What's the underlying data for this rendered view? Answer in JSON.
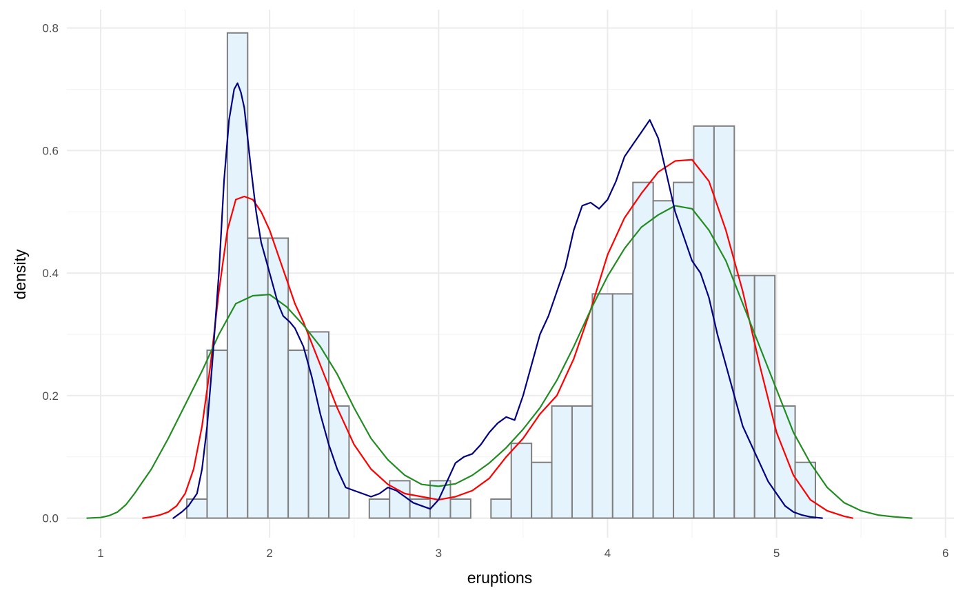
{
  "chart_data": {
    "type": "bar",
    "xlabel": "eruptions",
    "ylabel": "density",
    "xlim": [
      0.8,
      6.05
    ],
    "ylim": [
      -0.032,
      0.83
    ],
    "x_ticks": [
      1,
      2,
      3,
      4,
      5,
      6
    ],
    "x_tick_labels": [
      "1",
      "2",
      "3",
      "4",
      "5",
      "6"
    ],
    "y_ticks": [
      0.0,
      0.2,
      0.4,
      0.6,
      0.8
    ],
    "y_tick_labels": [
      "0.0",
      "0.2",
      "0.4",
      "0.6",
      "0.8"
    ],
    "grid": true,
    "histogram": {
      "bin_width": 0.12,
      "fill_color": "#e5f3fc",
      "stroke_color": "#7f7f7f",
      "bins": [
        {
          "x0": 1.51,
          "x1": 1.63,
          "density": 0.031
        },
        {
          "x0": 1.63,
          "x1": 1.75,
          "density": 0.274
        },
        {
          "x0": 1.75,
          "x1": 1.87,
          "density": 0.792
        },
        {
          "x0": 1.87,
          "x1": 1.99,
          "density": 0.457
        },
        {
          "x0": 1.99,
          "x1": 2.11,
          "density": 0.457
        },
        {
          "x0": 2.11,
          "x1": 2.23,
          "density": 0.274
        },
        {
          "x0": 2.23,
          "x1": 2.35,
          "density": 0.304
        },
        {
          "x0": 2.35,
          "x1": 2.47,
          "density": 0.183
        },
        {
          "x0": 2.47,
          "x1": 2.59,
          "density": 0.0
        },
        {
          "x0": 2.59,
          "x1": 2.71,
          "density": 0.031
        },
        {
          "x0": 2.71,
          "x1": 2.83,
          "density": 0.061
        },
        {
          "x0": 2.83,
          "x1": 2.95,
          "density": 0.031
        },
        {
          "x0": 2.95,
          "x1": 3.07,
          "density": 0.061
        },
        {
          "x0": 3.07,
          "x1": 3.19,
          "density": 0.031
        },
        {
          "x0": 3.19,
          "x1": 3.31,
          "density": 0.0
        },
        {
          "x0": 3.31,
          "x1": 3.43,
          "density": 0.031
        },
        {
          "x0": 3.43,
          "x1": 3.55,
          "density": 0.122
        },
        {
          "x0": 3.55,
          "x1": 3.67,
          "density": 0.091
        },
        {
          "x0": 3.67,
          "x1": 3.79,
          "density": 0.183
        },
        {
          "x0": 3.79,
          "x1": 3.91,
          "density": 0.183
        },
        {
          "x0": 3.91,
          "x1": 4.03,
          "density": 0.366
        },
        {
          "x0": 4.03,
          "x1": 4.15,
          "density": 0.366
        },
        {
          "x0": 4.15,
          "x1": 4.27,
          "density": 0.548
        },
        {
          "x0": 4.27,
          "x1": 4.39,
          "density": 0.518
        },
        {
          "x0": 4.39,
          "x1": 4.51,
          "density": 0.548
        },
        {
          "x0": 4.51,
          "x1": 4.63,
          "density": 0.64
        },
        {
          "x0": 4.63,
          "x1": 4.75,
          "density": 0.64
        },
        {
          "x0": 4.75,
          "x1": 4.87,
          "density": 0.396
        },
        {
          "x0": 4.87,
          "x1": 4.99,
          "density": 0.396
        },
        {
          "x0": 4.99,
          "x1": 5.11,
          "density": 0.183
        },
        {
          "x0": 5.11,
          "x1": 5.23,
          "density": 0.091
        }
      ]
    },
    "series": [
      {
        "color": "#ff0000",
        "x": [
          1.25,
          1.3,
          1.35,
          1.4,
          1.45,
          1.5,
          1.55,
          1.6,
          1.65,
          1.7,
          1.75,
          1.8,
          1.85,
          1.9,
          1.95,
          2.0,
          2.05,
          2.1,
          2.15,
          2.2,
          2.3,
          2.4,
          2.5,
          2.6,
          2.7,
          2.8,
          2.9,
          3.0,
          3.1,
          3.2,
          3.3,
          3.4,
          3.5,
          3.6,
          3.7,
          3.8,
          3.9,
          4.0,
          4.1,
          4.2,
          4.3,
          4.4,
          4.5,
          4.6,
          4.7,
          4.8,
          4.9,
          5.0,
          5.1,
          5.2,
          5.3,
          5.4,
          5.45
        ],
        "y": [
          0.0,
          0.002,
          0.005,
          0.01,
          0.02,
          0.04,
          0.08,
          0.15,
          0.25,
          0.37,
          0.47,
          0.52,
          0.525,
          0.52,
          0.5,
          0.47,
          0.43,
          0.39,
          0.35,
          0.32,
          0.25,
          0.18,
          0.12,
          0.08,
          0.055,
          0.04,
          0.035,
          0.03,
          0.035,
          0.045,
          0.065,
          0.1,
          0.13,
          0.17,
          0.2,
          0.26,
          0.34,
          0.43,
          0.49,
          0.53,
          0.565,
          0.583,
          0.585,
          0.55,
          0.47,
          0.37,
          0.25,
          0.14,
          0.07,
          0.03,
          0.012,
          0.003,
          0.0
        ]
      },
      {
        "color": "#228b22",
        "x": [
          0.92,
          1.0,
          1.05,
          1.1,
          1.15,
          1.2,
          1.3,
          1.4,
          1.5,
          1.6,
          1.7,
          1.8,
          1.9,
          2.0,
          2.1,
          2.2,
          2.3,
          2.4,
          2.5,
          2.6,
          2.7,
          2.8,
          2.9,
          3.0,
          3.1,
          3.2,
          3.3,
          3.4,
          3.5,
          3.6,
          3.7,
          3.8,
          3.9,
          4.0,
          4.1,
          4.2,
          4.3,
          4.4,
          4.5,
          4.6,
          4.7,
          4.8,
          4.9,
          5.0,
          5.1,
          5.2,
          5.3,
          5.4,
          5.5,
          5.6,
          5.7,
          5.8
        ],
        "y": [
          0.0,
          0.001,
          0.004,
          0.01,
          0.022,
          0.04,
          0.08,
          0.13,
          0.185,
          0.24,
          0.3,
          0.35,
          0.363,
          0.365,
          0.345,
          0.315,
          0.28,
          0.235,
          0.18,
          0.13,
          0.095,
          0.07,
          0.055,
          0.052,
          0.056,
          0.07,
          0.09,
          0.115,
          0.145,
          0.18,
          0.225,
          0.28,
          0.34,
          0.395,
          0.44,
          0.475,
          0.495,
          0.51,
          0.505,
          0.47,
          0.42,
          0.35,
          0.28,
          0.21,
          0.14,
          0.09,
          0.05,
          0.025,
          0.012,
          0.005,
          0.002,
          0.0
        ]
      },
      {
        "color": "#000080",
        "x": [
          1.43,
          1.48,
          1.52,
          1.57,
          1.6,
          1.63,
          1.66,
          1.7,
          1.73,
          1.76,
          1.79,
          1.81,
          1.83,
          1.85,
          1.87,
          1.89,
          1.92,
          1.95,
          1.98,
          2.02,
          2.05,
          2.08,
          2.12,
          2.15,
          2.2,
          2.25,
          2.3,
          2.35,
          2.4,
          2.45,
          2.5,
          2.55,
          2.6,
          2.65,
          2.7,
          2.75,
          2.8,
          2.85,
          2.9,
          2.95,
          3.0,
          3.05,
          3.1,
          3.15,
          3.2,
          3.25,
          3.3,
          3.35,
          3.4,
          3.45,
          3.5,
          3.55,
          3.6,
          3.65,
          3.7,
          3.75,
          3.8,
          3.85,
          3.9,
          3.95,
          4.0,
          4.05,
          4.1,
          4.15,
          4.2,
          4.25,
          4.3,
          4.35,
          4.4,
          4.45,
          4.5,
          4.55,
          4.6,
          4.65,
          4.7,
          4.75,
          4.8,
          4.85,
          4.9,
          4.95,
          5.0,
          5.05,
          5.1,
          5.15,
          5.2,
          5.27
        ],
        "y": [
          0.0,
          0.01,
          0.02,
          0.04,
          0.08,
          0.15,
          0.25,
          0.4,
          0.55,
          0.65,
          0.7,
          0.71,
          0.695,
          0.67,
          0.62,
          0.57,
          0.5,
          0.45,
          0.42,
          0.38,
          0.35,
          0.33,
          0.32,
          0.31,
          0.28,
          0.23,
          0.17,
          0.12,
          0.08,
          0.05,
          0.045,
          0.04,
          0.035,
          0.04,
          0.05,
          0.045,
          0.035,
          0.025,
          0.02,
          0.015,
          0.03,
          0.06,
          0.09,
          0.1,
          0.105,
          0.12,
          0.14,
          0.155,
          0.165,
          0.16,
          0.2,
          0.25,
          0.3,
          0.33,
          0.37,
          0.41,
          0.47,
          0.51,
          0.515,
          0.505,
          0.52,
          0.55,
          0.59,
          0.61,
          0.63,
          0.65,
          0.62,
          0.56,
          0.5,
          0.46,
          0.42,
          0.4,
          0.36,
          0.3,
          0.25,
          0.2,
          0.15,
          0.12,
          0.09,
          0.06,
          0.04,
          0.02,
          0.01,
          0.005,
          0.002,
          0.0
        ]
      }
    ]
  }
}
